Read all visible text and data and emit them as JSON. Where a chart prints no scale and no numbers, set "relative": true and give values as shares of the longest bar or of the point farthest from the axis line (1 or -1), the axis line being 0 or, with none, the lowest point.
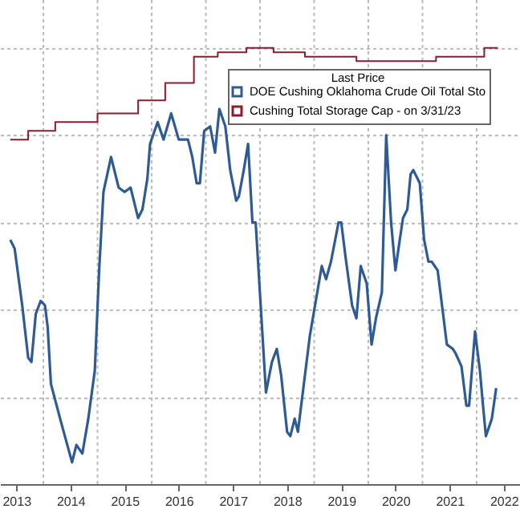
{
  "chart_data": {
    "type": "line",
    "relative": true,
    "legend_title": "Last Price",
    "xlim": [
      2013.2,
      2022.8
    ],
    "xticks": [
      {
        "value": 2013.5,
        "label": "2013"
      },
      {
        "value": 2014,
        "label": null
      },
      {
        "value": 2014.5,
        "label": "2014"
      },
      {
        "value": 2015,
        "label": null
      },
      {
        "value": 2015.5,
        "label": "2015"
      },
      {
        "value": 2016,
        "label": null
      },
      {
        "value": 2016.5,
        "label": "2016"
      },
      {
        "value": 2017,
        "label": null
      },
      {
        "value": 2017.5,
        "label": "2017"
      },
      {
        "value": 2018,
        "label": null
      },
      {
        "value": 2018.5,
        "label": "2018"
      },
      {
        "value": 2019,
        "label": null
      },
      {
        "value": 2019.5,
        "label": "2019"
      },
      {
        "value": 2020,
        "label": null
      },
      {
        "value": 2020.5,
        "label": "2020"
      },
      {
        "value": 2021,
        "label": null
      },
      {
        "value": 2021.5,
        "label": "2021"
      },
      {
        "value": 2022,
        "label": null
      },
      {
        "value": 2022.5,
        "label": "2022"
      }
    ],
    "grid": true,
    "legend": "top right",
    "series": [
      {
        "name": "DOE Cushing Oklahoma Crude Oil Total Sto",
        "color": "#2e5b96",
        "type": "line",
        "x": [
          2013.39,
          2013.47,
          2013.61,
          2013.72,
          2013.78,
          2013.86,
          2013.95,
          2014.03,
          2014.08,
          2014.14,
          2014.31,
          2014.42,
          2014.53,
          2014.61,
          2014.72,
          2014.83,
          2014.95,
          2015.03,
          2015.11,
          2015.25,
          2015.39,
          2015.5,
          2015.61,
          2015.75,
          2015.83,
          2015.92,
          2015.97,
          2016.11,
          2016.22,
          2016.36,
          2016.5,
          2016.67,
          2016.75,
          2016.83,
          2016.89,
          2016.97,
          2017.08,
          2017.17,
          2017.25,
          2017.36,
          2017.45,
          2017.56,
          2017.61,
          2017.7,
          2017.78,
          2017.86,
          2017.92,
          2018.11,
          2018.22,
          2018.31,
          2018.39,
          2018.5,
          2018.56,
          2018.64,
          2018.7,
          2018.81,
          2018.92,
          2019.03,
          2019.14,
          2019.22,
          2019.31,
          2019.45,
          2019.5,
          2019.58,
          2019.7,
          2019.78,
          2019.86,
          2019.97,
          2020.06,
          2020.14,
          2020.25,
          2020.33,
          2020.42,
          2020.5,
          2020.58,
          2020.64,
          2020.72,
          2020.78,
          2020.83,
          2020.95,
          2021.03,
          2021.11,
          2021.17,
          2021.28,
          2021.45,
          2021.56,
          2021.61,
          2021.72,
          2021.81,
          2021.86,
          2021.97,
          2022.06,
          2022.11,
          2022.17,
          2022.28,
          2022.36
        ],
        "values": [
          0.56,
          0.54,
          0.41,
          0.29,
          0.28,
          0.39,
          0.42,
          0.41,
          0.36,
          0.23,
          0.15,
          0.1,
          0.05,
          0.09,
          0.07,
          0.15,
          0.26,
          0.49,
          0.67,
          0.75,
          0.68,
          0.67,
          0.68,
          0.61,
          0.63,
          0.7,
          0.78,
          0.83,
          0.79,
          0.85,
          0.79,
          0.79,
          0.75,
          0.69,
          0.69,
          0.81,
          0.82,
          0.76,
          0.86,
          0.82,
          0.72,
          0.65,
          0.66,
          0.72,
          0.78,
          0.6,
          0.6,
          0.21,
          0.28,
          0.31,
          0.25,
          0.12,
          0.11,
          0.15,
          0.12,
          0.23,
          0.34,
          0.42,
          0.5,
          0.47,
          0.51,
          0.6,
          0.6,
          0.52,
          0.41,
          0.38,
          0.5,
          0.46,
          0.32,
          0.38,
          0.44,
          0.8,
          0.6,
          0.49,
          0.56,
          0.61,
          0.63,
          0.71,
          0.72,
          0.69,
          0.56,
          0.51,
          0.51,
          0.49,
          0.32,
          0.31,
          0.3,
          0.27,
          0.18,
          0.18,
          0.35,
          0.26,
          0.19,
          0.11,
          0.15,
          0.22
        ]
      },
      {
        "name": "Cushing Total Storage Cap -  on 3/31/23",
        "color": "#8c1c2c",
        "type": "step",
        "x": [
          2013.39,
          2013.72,
          2014.22,
          2015.0,
          2015.75,
          2016.25,
          2016.78,
          2017.22,
          2017.75,
          2018.25,
          2018.83,
          2019.78,
          2021.25,
          2022.14,
          2022.39
        ],
        "values": [
          0.79,
          0.81,
          0.83,
          0.85,
          0.88,
          0.92,
          0.98,
          0.99,
          1.0,
          0.99,
          0.98,
          0.97,
          0.98,
          1.0,
          1.0
        ]
      }
    ]
  }
}
